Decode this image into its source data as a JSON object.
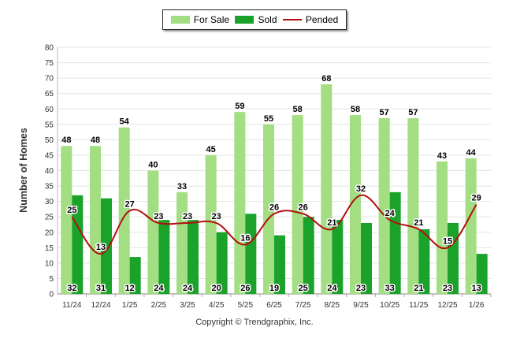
{
  "chart_data": {
    "type": "bar",
    "categories": [
      "11/24",
      "12/24",
      "1/25",
      "2/25",
      "3/25",
      "4/25",
      "5/25",
      "6/25",
      "7/25",
      "8/25",
      "9/25",
      "10/25",
      "11/25",
      "12/25",
      "1/26"
    ],
    "series": [
      {
        "name": "For Sale",
        "type": "bar",
        "color": "#a3de83",
        "values": [
          48,
          48,
          54,
          40,
          33,
          45,
          59,
          55,
          58,
          68,
          58,
          57,
          57,
          43,
          44
        ]
      },
      {
        "name": "Sold",
        "type": "bar",
        "color": "#1aa22a",
        "values": [
          32,
          31,
          12,
          24,
          24,
          20,
          26,
          19,
          25,
          24,
          23,
          33,
          21,
          23,
          13
        ]
      },
      {
        "name": "Pended",
        "type": "line",
        "color": "#b30f0f",
        "values": [
          25,
          13,
          27,
          23,
          23,
          23,
          16,
          26,
          26,
          21,
          32,
          24,
          21,
          15,
          29
        ]
      }
    ],
    "ylabel": "Number of Homes",
    "xlabel": "",
    "ylim": [
      0,
      80
    ],
    "yticks": [
      0,
      5,
      10,
      15,
      20,
      25,
      30,
      35,
      40,
      45,
      50,
      55,
      60,
      65,
      70,
      75,
      80
    ],
    "grid": true,
    "legend_position": "top-center"
  },
  "legend": {
    "for_sale": "For Sale",
    "sold": "Sold",
    "pended": "Pended"
  },
  "footer": {
    "copyright": "Copyright © Trendgraphix, Inc."
  }
}
